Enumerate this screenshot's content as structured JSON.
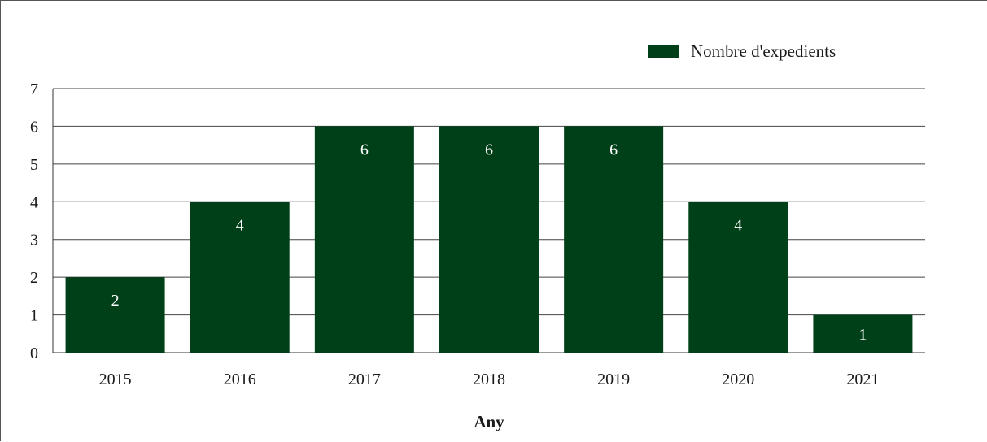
{
  "chart_data": {
    "type": "bar",
    "categories": [
      "2015",
      "2016",
      "2017",
      "2018",
      "2019",
      "2020",
      "2021"
    ],
    "series": [
      {
        "name": "Nombre d'expedients",
        "values": [
          2,
          4,
          6,
          6,
          6,
          4,
          1
        ],
        "color": "#004019"
      }
    ],
    "xlabel": "Any",
    "ylabel": "",
    "ylim": [
      0,
      7
    ],
    "yticks": [
      0,
      1,
      2,
      3,
      4,
      5,
      6,
      7
    ],
    "grid": true,
    "legend_position": "top-right",
    "data_labels": true
  }
}
